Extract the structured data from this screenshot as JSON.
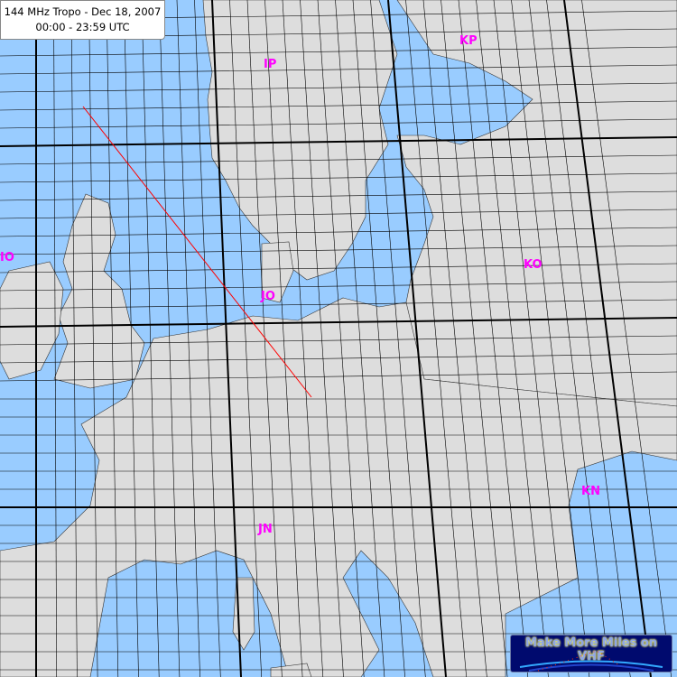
{
  "title": {
    "line1": "144 MHz Tropo - Dec 18, 2007",
    "line2": "00:00 - 23:59 UTC"
  },
  "fields": [
    {
      "label": "IP"
    },
    {
      "label": "KP"
    },
    {
      "label": "IO"
    },
    {
      "label": "JO"
    },
    {
      "label": "KO"
    },
    {
      "label": "JN"
    },
    {
      "label": "KN"
    }
  ],
  "logo": {
    "text": "Make More Miles on VHF"
  },
  "colors": {
    "sea": "#99ccff",
    "land": "#dddddd",
    "field_label": "#ff00ff",
    "path": "#ff0000",
    "grid": "#000000"
  }
}
